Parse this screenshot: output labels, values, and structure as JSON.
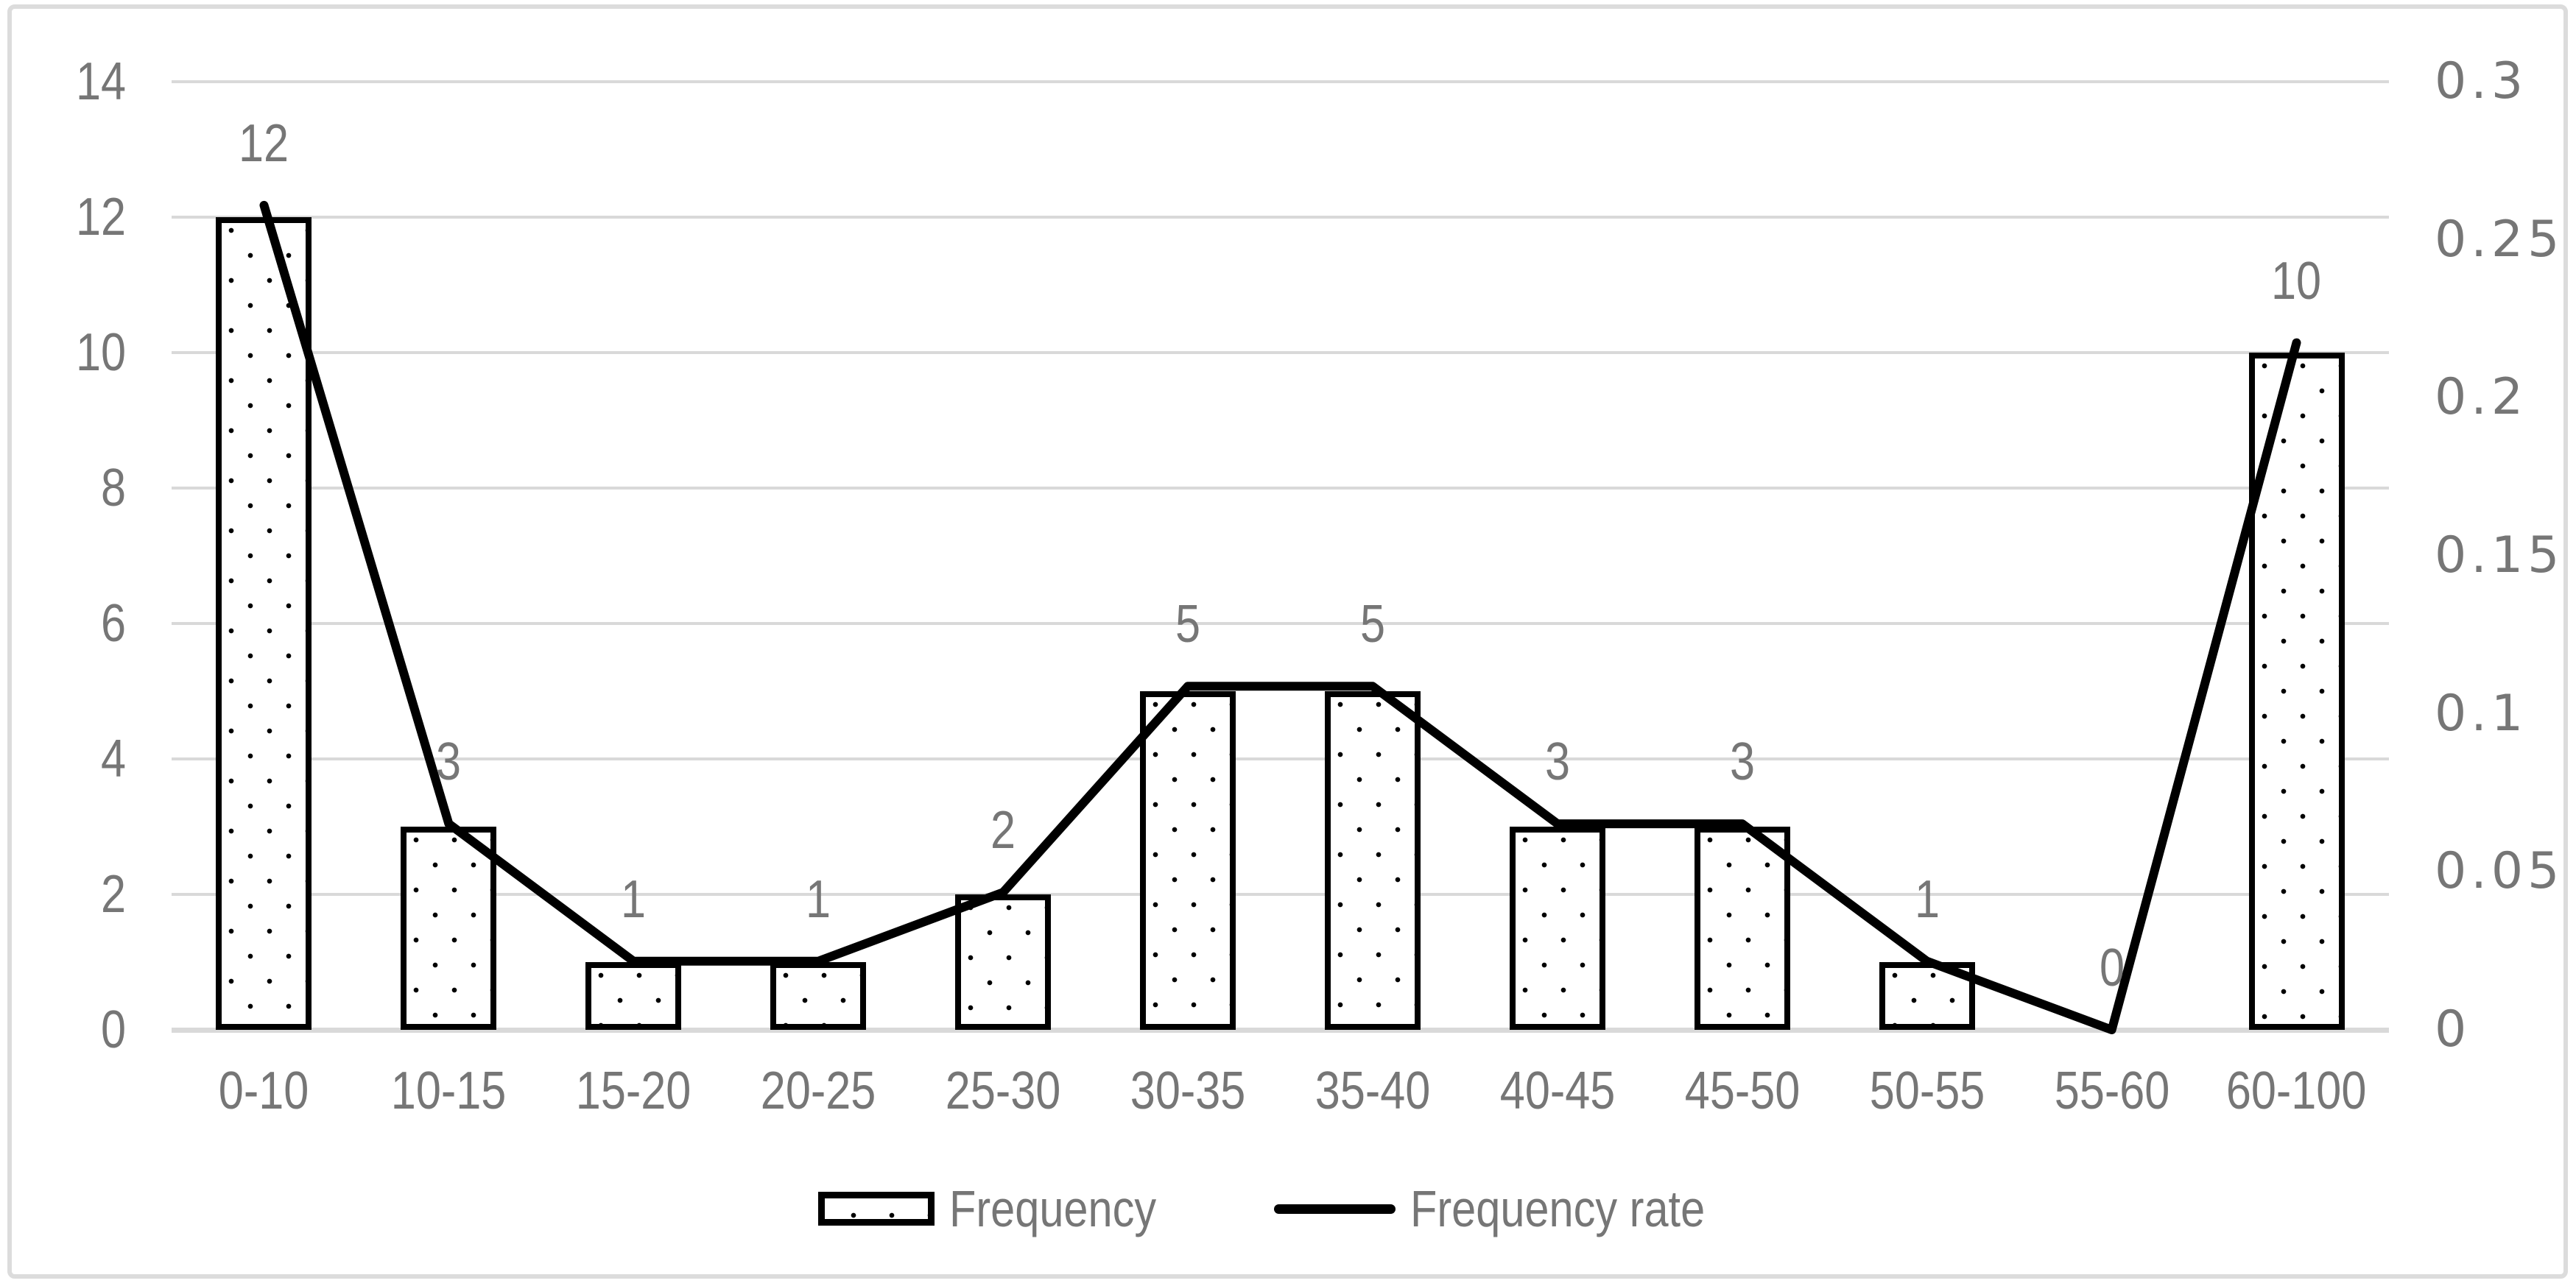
{
  "chart_data": {
    "type": "combo-bar-line",
    "title": "",
    "categories": [
      "0-10",
      "10-15",
      "15-20",
      "20-25",
      "25-30",
      "30-35",
      "35-40",
      "40-45",
      "45-50",
      "50-55",
      "55-60",
      "60-100"
    ],
    "series": [
      {
        "name": "Frequency",
        "type": "bar",
        "axis": "left",
        "values": [
          12,
          3,
          1,
          1,
          2,
          5,
          5,
          3,
          3,
          1,
          0,
          10
        ],
        "data_labels": [
          "12",
          "3",
          "1",
          "1",
          "2",
          "5",
          "5",
          "3",
          "3",
          "1",
          "0",
          "10"
        ],
        "fill": "dotted-pattern",
        "color": "#000000"
      },
      {
        "name": "Frequency rate",
        "type": "line",
        "axis": "right",
        "values": [
          0.2609,
          0.0652,
          0.0217,
          0.0217,
          0.0435,
          0.1087,
          0.1087,
          0.0652,
          0.0652,
          0.0217,
          0,
          0.2174
        ],
        "color": "#000000"
      }
    ],
    "left_axis": {
      "min": 0,
      "max": 14,
      "ticks": [
        "0",
        "2",
        "4",
        "6",
        "8",
        "10",
        "12",
        "14"
      ]
    },
    "right_axis": {
      "min": 0,
      "max": 0.3,
      "ticks": [
        "0",
        "0.05",
        "0.1",
        "0.15",
        "0.2",
        "0.25",
        "0.3"
      ]
    },
    "grid": true,
    "legend": {
      "position": "bottom",
      "items": [
        {
          "label": "Frequency",
          "swatch": "dotted-box"
        },
        {
          "label": "Frequency rate",
          "swatch": "line"
        }
      ]
    },
    "colors": {
      "text": "#767676",
      "gridline": "#d9d9d9",
      "axis_line": "#d9d9d9",
      "series": "#000000",
      "background": "#ffffff",
      "chart_border": "#dcdcdc"
    }
  }
}
